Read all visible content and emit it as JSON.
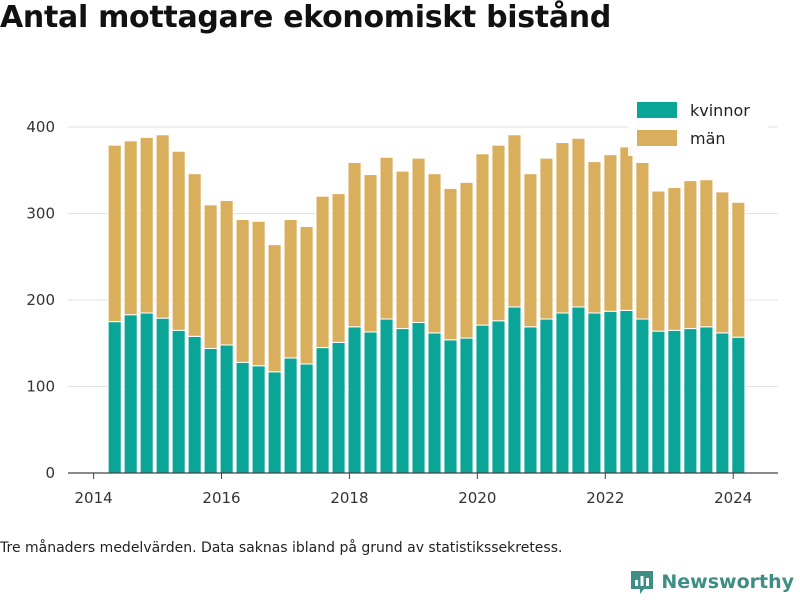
{
  "title": "Antal mottagare ekonomiskt bistånd",
  "footnote": "Tre månaders medelvärden. Data saknas ibland på grund av statistikssekretess.",
  "brand": {
    "name": "Newsworthy",
    "icon": "bar-chart-logo-icon",
    "color": "#3e8e86"
  },
  "chart_data": {
    "type": "bar",
    "stacked": true,
    "title": "Antal mottagare ekonomiskt bistånd",
    "xlabel": "",
    "ylabel": "",
    "x_unit": "year",
    "xlim": [
      2013.6,
      2024.7
    ],
    "ylim": [
      0,
      400
    ],
    "x_ticks": [
      2014,
      2016,
      2018,
      2020,
      2022,
      2024
    ],
    "y_ticks": [
      0,
      100,
      200,
      300,
      400
    ],
    "grid": true,
    "legend": "top-right",
    "x": [
      2014.33,
      2014.58,
      2014.83,
      2015.08,
      2015.33,
      2015.58,
      2015.83,
      2016.08,
      2016.33,
      2016.58,
      2016.83,
      2017.08,
      2017.33,
      2017.58,
      2017.83,
      2018.08,
      2018.33,
      2018.58,
      2018.83,
      2019.08,
      2019.33,
      2019.58,
      2019.83,
      2020.08,
      2020.33,
      2020.58,
      2020.83,
      2021.08,
      2021.33,
      2021.58,
      2021.83,
      2022.08,
      2022.33,
      2022.58,
      2022.83,
      2023.08,
      2023.33,
      2023.58,
      2023.83,
      2024.08
    ],
    "series": [
      {
        "name": "kvinnor",
        "color": "#0aa597",
        "values": [
          175,
          183,
          185,
          179,
          165,
          158,
          144,
          148,
          128,
          124,
          117,
          133,
          126,
          145,
          151,
          169,
          163,
          178,
          167,
          174,
          162,
          154,
          156,
          171,
          176,
          192,
          169,
          178,
          185,
          192,
          185,
          187,
          188,
          178,
          164,
          165,
          167,
          169,
          162,
          157
        ]
      },
      {
        "name": "män",
        "color": "#d9ae5c",
        "values": [
          204,
          201,
          203,
          212,
          207,
          188,
          166,
          167,
          165,
          167,
          147,
          160,
          159,
          175,
          172,
          190,
          182,
          187,
          182,
          190,
          184,
          175,
          180,
          198,
          203,
          199,
          177,
          186,
          197,
          195,
          175,
          181,
          189,
          181,
          162,
          165,
          171,
          170,
          163,
          156
        ]
      }
    ]
  }
}
